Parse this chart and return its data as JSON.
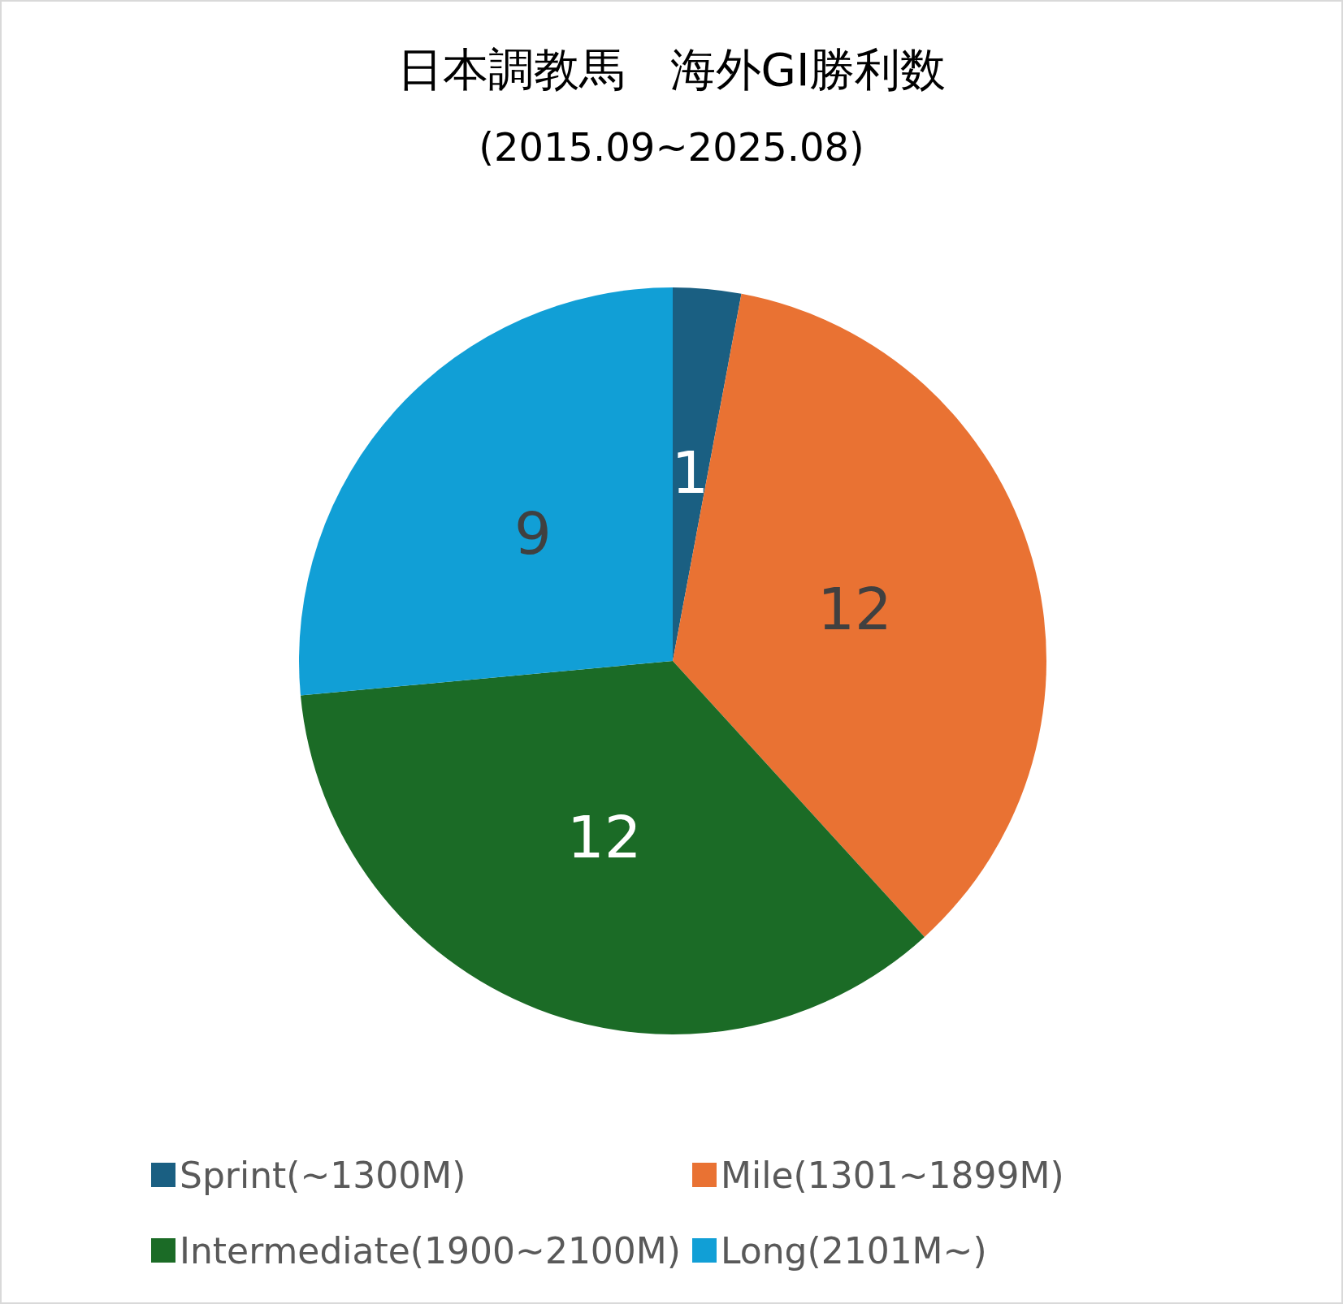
{
  "chart_data": {
    "type": "pie",
    "title": "日本調教馬　海外GⅠ勝利数",
    "subtitle": "(2015.09~2025.08)",
    "categories": [
      "Sprint(~1300M)",
      "Mile(1301~1899M)",
      "Intermediate(1900~2100M)",
      "Long(2101M~)"
    ],
    "values": [
      1,
      12,
      12,
      9
    ],
    "colors": [
      "#1a5f82",
      "#e97233",
      "#1b6b26",
      "#119fd6"
    ],
    "data_labels": true,
    "legend": "bottom"
  }
}
